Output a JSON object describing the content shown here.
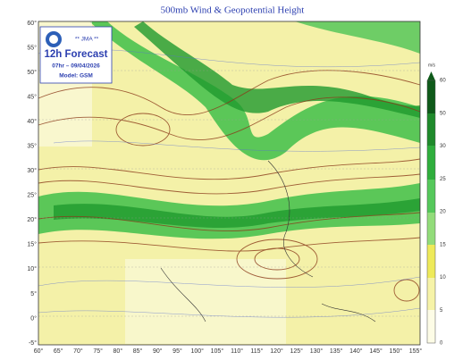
{
  "title": "500mb Wind & Geopotential Height",
  "logo": {
    "org": "** JMA **",
    "headline": "12h Forecast",
    "time": "07hr – 09/04/2026",
    "model": "Model: GSM"
  },
  "lat_labels": [
    "60°",
    "55°",
    "50°",
    "45°",
    "40°",
    "35°",
    "30°",
    "25°",
    "20°",
    "15°",
    "10°",
    "5°",
    "0°",
    "-5°"
  ],
  "lon_labels": [
    "60°",
    "65°",
    "70°",
    "75°",
    "80°",
    "85°",
    "90°",
    "95°",
    "100°",
    "105°",
    "110°",
    "115°",
    "120°",
    "125°",
    "130°",
    "135°",
    "140°",
    "145°",
    "150°",
    "155°"
  ],
  "colorbar": {
    "unit": "m/s",
    "labels": [
      60,
      50,
      30,
      25,
      20,
      15,
      10,
      5,
      0
    ]
  }
}
